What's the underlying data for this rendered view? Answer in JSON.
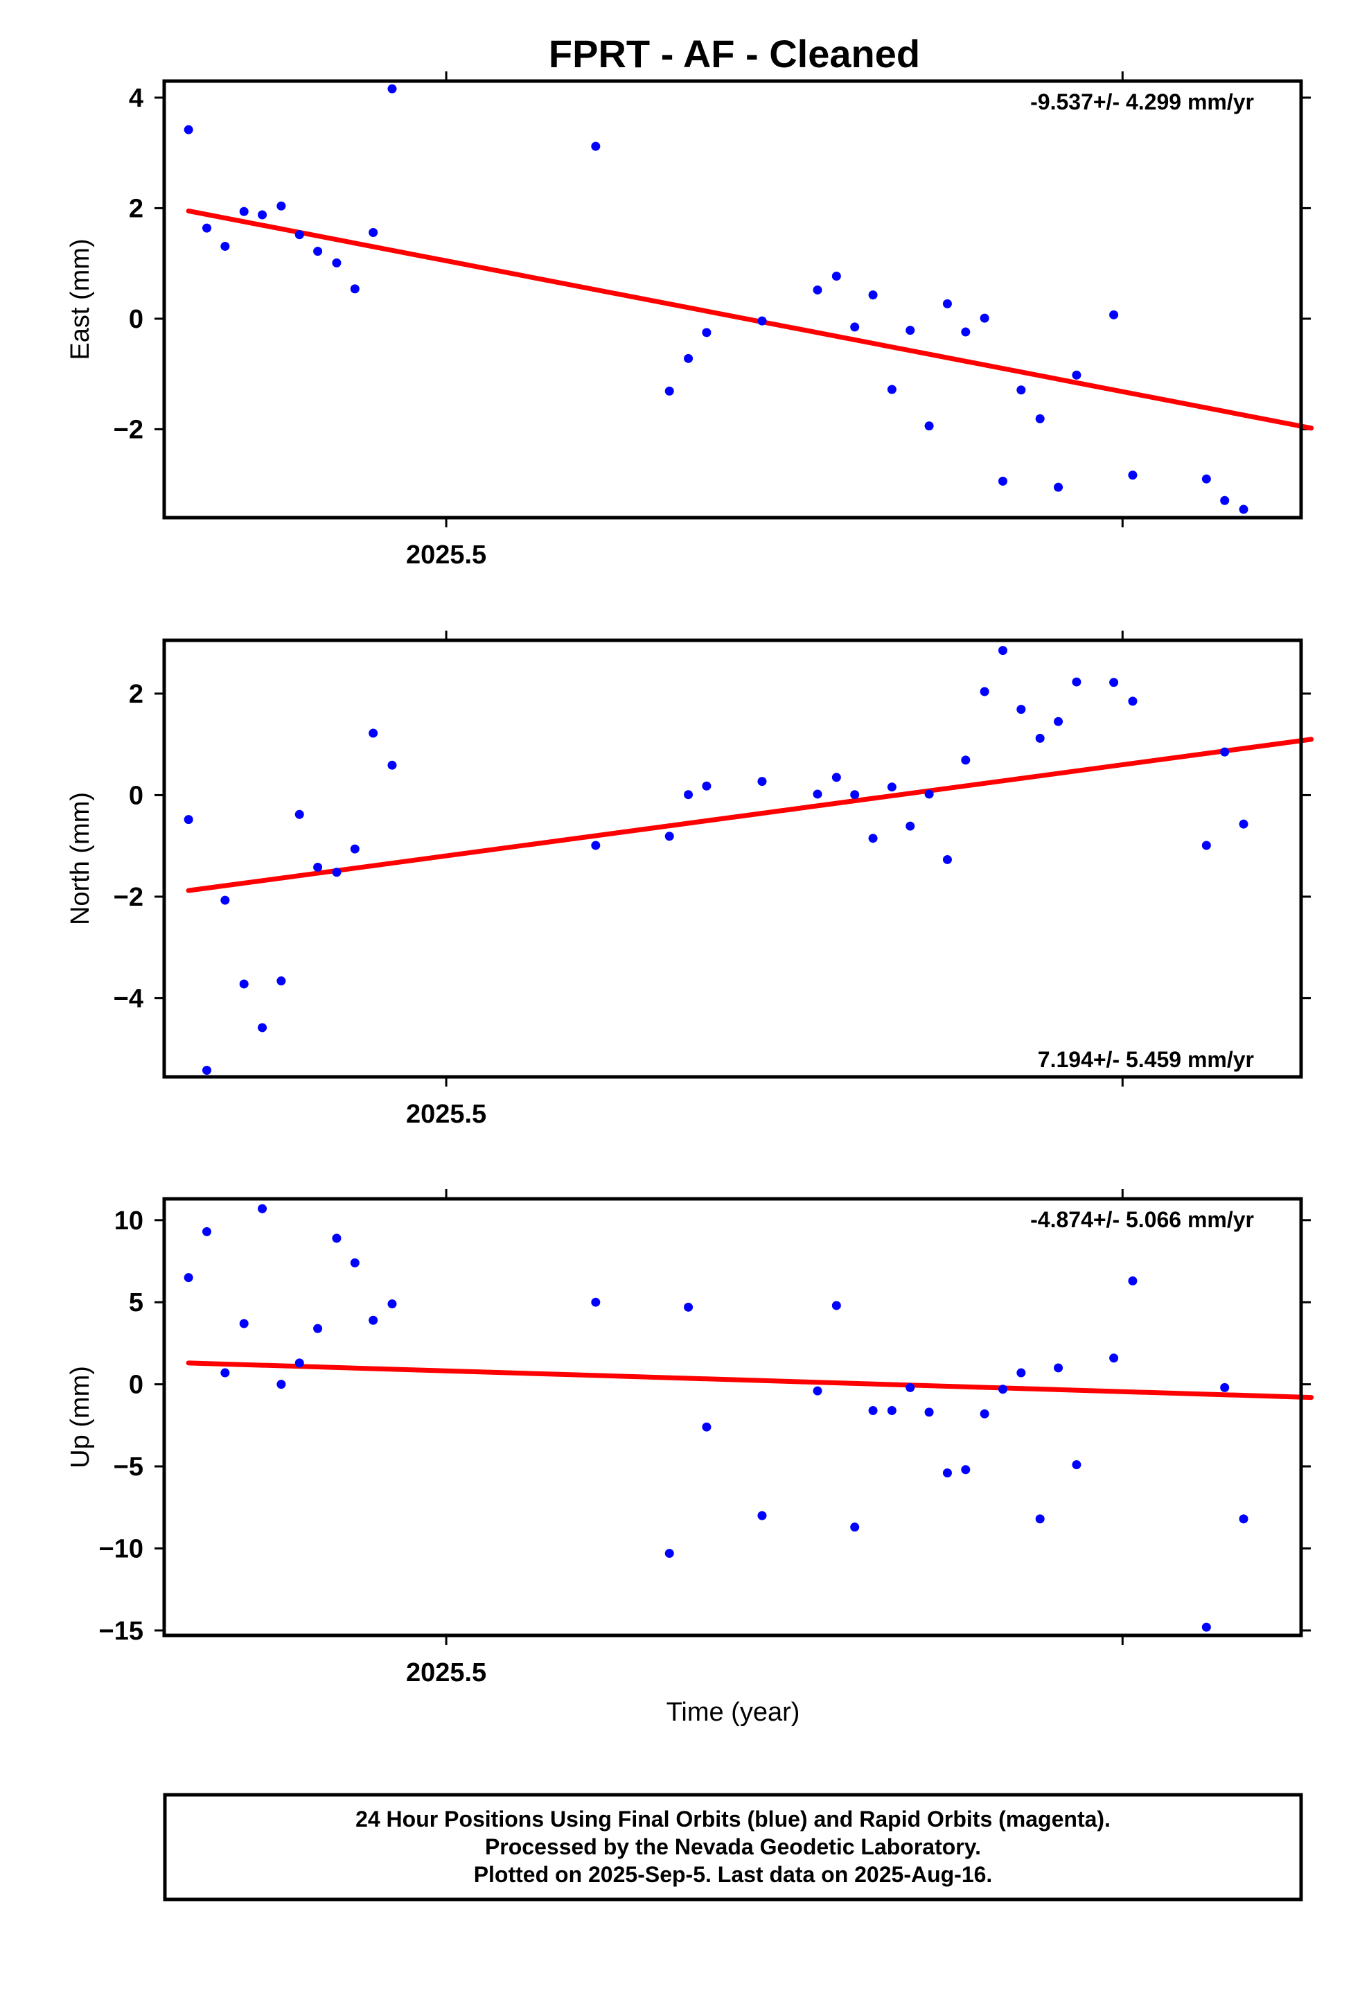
{
  "title": "FPRT  - AF - Cleaned",
  "xlabel": "Time (year)",
  "colors": {
    "final_orbit_points": "#0000ff",
    "trend_line": "#ff0000",
    "frame": "#000000"
  },
  "footer_lines": [
    "24 Hour Positions Using Final Orbits (blue) and Rapid Orbits (magenta).",
    "Processed by the Nevada Geodetic Laboratory.",
    "Plotted on 2025-Sep-5. Last data on 2025-Aug-16."
  ],
  "chart_data": [
    {
      "type": "scatter",
      "ylabel": "East (mm)",
      "rate_label": "-9.537+/- 4.299 mm/yr",
      "xlim": [
        2025.4583,
        2025.6264
      ],
      "ylim": [
        -3.6,
        4.3
      ],
      "yticks": [
        -2,
        0,
        2,
        4
      ],
      "xticks": [
        2025.5,
        2025.6
      ],
      "xtick_labels": [
        "2025.5",
        ""
      ],
      "x": [
        2025.4619,
        2025.4646,
        2025.4673,
        2025.4701,
        2025.4728,
        2025.4756,
        2025.4783,
        2025.481,
        2025.4838,
        2025.4865,
        2025.4892,
        2025.492,
        2025.5221,
        2025.533,
        2025.5358,
        2025.5385,
        2025.5467,
        2025.5549,
        2025.5577,
        2025.5604,
        2025.5631,
        2025.5659,
        2025.5686,
        2025.5714,
        2025.5741,
        2025.5768,
        2025.5796,
        2025.5823,
        2025.585,
        2025.5878,
        2025.5905,
        2025.5932,
        2025.5987,
        2025.6015,
        2025.6124,
        2025.6151,
        2025.6179
      ],
      "y": [
        3.42,
        1.64,
        1.31,
        1.94,
        1.88,
        2.04,
        1.52,
        1.22,
        1.01,
        0.54,
        1.56,
        4.16,
        3.12,
        -1.31,
        -0.72,
        -0.25,
        -0.04,
        0.52,
        0.77,
        -0.15,
        0.43,
        -1.28,
        -0.21,
        -1.94,
        0.27,
        -0.24,
        0.01,
        -2.94,
        -1.29,
        -1.81,
        -3.05,
        -1.02,
        0.07,
        -2.83,
        -2.9,
        -3.29,
        -3.45
      ],
      "trend": {
        "x": [
          2025.4619,
          2025.6279
        ],
        "y": [
          1.95,
          -1.98
        ]
      }
    },
    {
      "type": "scatter",
      "ylabel": "North (mm)",
      "rate_label": "7.194+/- 5.459 mm/yr",
      "xlim": [
        2025.4583,
        2025.6264
      ],
      "ylim": [
        -5.55,
        3.05
      ],
      "yticks": [
        -4,
        -2,
        0,
        2
      ],
      "xticks": [
        2025.5,
        2025.6
      ],
      "xtick_labels": [
        "2025.5",
        ""
      ],
      "x": [
        2025.4619,
        2025.4646,
        2025.4673,
        2025.4701,
        2025.4728,
        2025.4756,
        2025.4783,
        2025.481,
        2025.4838,
        2025.4865,
        2025.4892,
        2025.492,
        2025.5221,
        2025.533,
        2025.5358,
        2025.5385,
        2025.5467,
        2025.5549,
        2025.5577,
        2025.5604,
        2025.5631,
        2025.5659,
        2025.5686,
        2025.5714,
        2025.5741,
        2025.5768,
        2025.5796,
        2025.5823,
        2025.585,
        2025.5878,
        2025.5905,
        2025.5932,
        2025.5987,
        2025.6015,
        2025.6124,
        2025.6151,
        2025.6179
      ],
      "y": [
        -0.48,
        -5.42,
        -2.07,
        -3.72,
        -4.58,
        -3.66,
        -0.38,
        -1.42,
        -1.52,
        -1.06,
        1.22,
        0.59,
        -0.99,
        -0.81,
        0.01,
        0.18,
        0.27,
        0.02,
        0.35,
        0.01,
        -0.85,
        0.16,
        -0.61,
        0.02,
        -1.27,
        0.69,
        2.04,
        2.85,
        1.69,
        1.12,
        1.45,
        2.23,
        2.22,
        1.85,
        -0.99,
        0.85,
        -0.57
      ],
      "trend": {
        "x": [
          2025.4619,
          2025.6279
        ],
        "y": [
          -1.88,
          1.1
        ]
      }
    },
    {
      "type": "scatter",
      "ylabel": "Up (mm)",
      "rate_label": "-4.874+/- 5.066 mm/yr",
      "xlim": [
        2025.4583,
        2025.6264
      ],
      "ylim": [
        -15.3,
        11.3
      ],
      "yticks": [
        -15,
        -10,
        -5,
        0,
        5,
        10
      ],
      "xticks": [
        2025.5,
        2025.6
      ],
      "xtick_labels": [
        "2025.5",
        ""
      ],
      "x": [
        2025.4619,
        2025.4646,
        2025.4673,
        2025.4701,
        2025.4728,
        2025.4756,
        2025.4783,
        2025.481,
        2025.4838,
        2025.4865,
        2025.4892,
        2025.492,
        2025.5221,
        2025.533,
        2025.5358,
        2025.5385,
        2025.5467,
        2025.5549,
        2025.5577,
        2025.5604,
        2025.5631,
        2025.5659,
        2025.5686,
        2025.5714,
        2025.5741,
        2025.5768,
        2025.5796,
        2025.5823,
        2025.585,
        2025.5878,
        2025.5905,
        2025.5932,
        2025.5987,
        2025.6015,
        2025.6124,
        2025.6151,
        2025.6179
      ],
      "y": [
        6.5,
        9.3,
        0.7,
        3.7,
        10.7,
        0.0,
        1.3,
        3.4,
        8.9,
        7.4,
        3.9,
        4.9,
        5.0,
        -10.3,
        4.7,
        -2.6,
        -8.0,
        -0.4,
        4.8,
        -8.7,
        -1.6,
        -1.6,
        -0.2,
        -1.7,
        -5.4,
        -5.2,
        -1.8,
        -0.3,
        0.7,
        -8.2,
        1.0,
        -4.9,
        1.6,
        6.3,
        -14.8,
        -0.2,
        -8.2
      ],
      "trend": {
        "x": [
          2025.4619,
          2025.6279
        ],
        "y": [
          1.3,
          -0.8
        ]
      }
    }
  ]
}
